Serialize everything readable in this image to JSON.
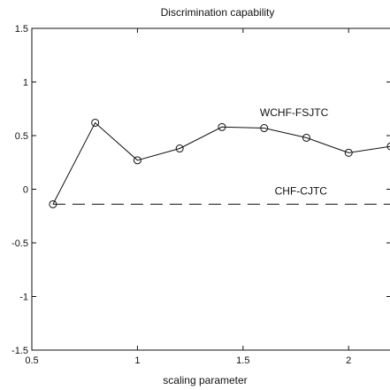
{
  "chart_data": {
    "type": "line",
    "title": "Discrimination capability",
    "xlabel": "scaling parameter",
    "ylabel": "",
    "xlim": [
      0.5,
      2.2
    ],
    "ylim": [
      -1.5,
      1.5
    ],
    "xticks": [
      0.5,
      1,
      1.5,
      2
    ],
    "xtick_labels": [
      "0.5",
      "1",
      "1.5",
      "2"
    ],
    "yticks": [
      -1.5,
      -1,
      -0.5,
      0,
      0.5,
      1,
      1.5
    ],
    "ytick_labels": [
      "-1.5",
      "-1",
      "-0.5",
      "0",
      "0.5",
      "1",
      "1.5"
    ],
    "grid": false,
    "legend": "none",
    "series": [
      {
        "name": "WCHF-FSJTC",
        "style": "solid",
        "marker": "circle",
        "color": "#111111",
        "x": [
          0.6,
          0.8,
          1.0,
          1.2,
          1.4,
          1.6,
          1.8,
          2.0,
          2.2
        ],
        "y": [
          -0.14,
          0.62,
          0.27,
          0.38,
          0.58,
          0.57,
          0.48,
          0.34,
          0.4
        ]
      },
      {
        "name": "CHF-CJTC",
        "style": "dashed",
        "marker": "none",
        "color": "#111111",
        "x": [
          0.6,
          2.2
        ],
        "y": [
          -0.14,
          -0.14
        ]
      }
    ],
    "annotations": [
      {
        "text": "WCHF-FSJTC",
        "x": 1.58,
        "y": 0.68
      },
      {
        "text": "CHF-CJTC",
        "x": 1.65,
        "y": -0.05
      }
    ]
  }
}
